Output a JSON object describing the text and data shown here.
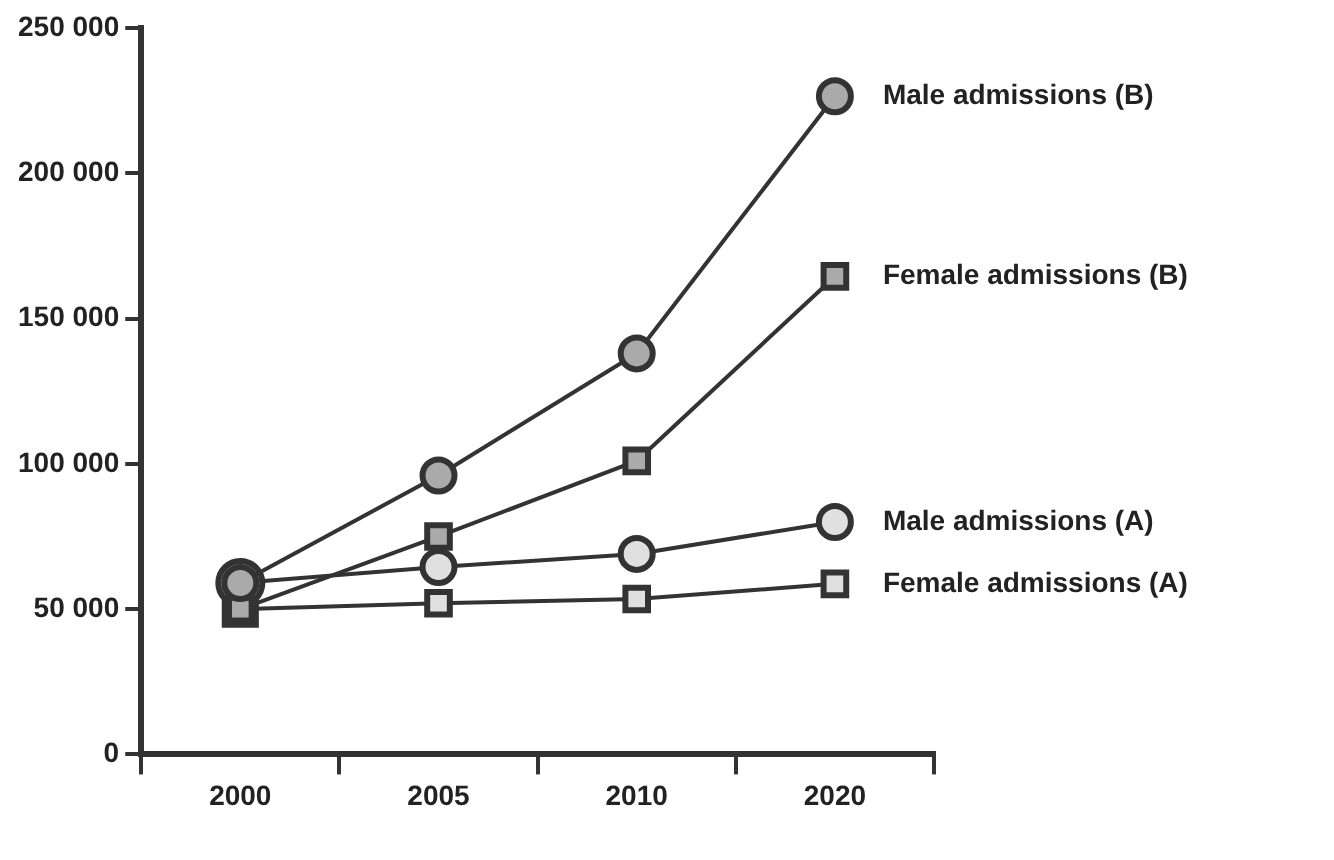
{
  "chart_data": {
    "type": "line",
    "categories": [
      "2000",
      "2005",
      "2010",
      "2020"
    ],
    "series": [
      {
        "name": "Male admissions (B)",
        "color": "#aaaaaa",
        "marker": "circle",
        "values": [
          59000,
          96000,
          138000,
          226500
        ]
      },
      {
        "name": "Female admissions (B)",
        "color": "#aaaaaa",
        "marker": "square",
        "values": [
          50000,
          75000,
          101000,
          164500
        ]
      },
      {
        "name": "Male admissions (A)",
        "color": "#e0e0e0",
        "marker": "circle",
        "values": [
          59000,
          64500,
          69000,
          80000
        ]
      },
      {
        "name": "Female admissions (A)",
        "color": "#e0e0e0",
        "marker": "square",
        "values": [
          50000,
          52000,
          53500,
          58700
        ]
      }
    ],
    "ylim": [
      0,
      250000
    ],
    "yticks": [
      {
        "value": 0,
        "label": "0"
      },
      {
        "value": 50000,
        "label": "50 000"
      },
      {
        "value": 100000,
        "label": "100 000"
      },
      {
        "value": 150000,
        "label": "150 000"
      },
      {
        "value": 200000,
        "label": "200 000"
      },
      {
        "value": 250000,
        "label": "250 000"
      }
    ],
    "grid": false,
    "legend": false,
    "line_style": "solid"
  }
}
